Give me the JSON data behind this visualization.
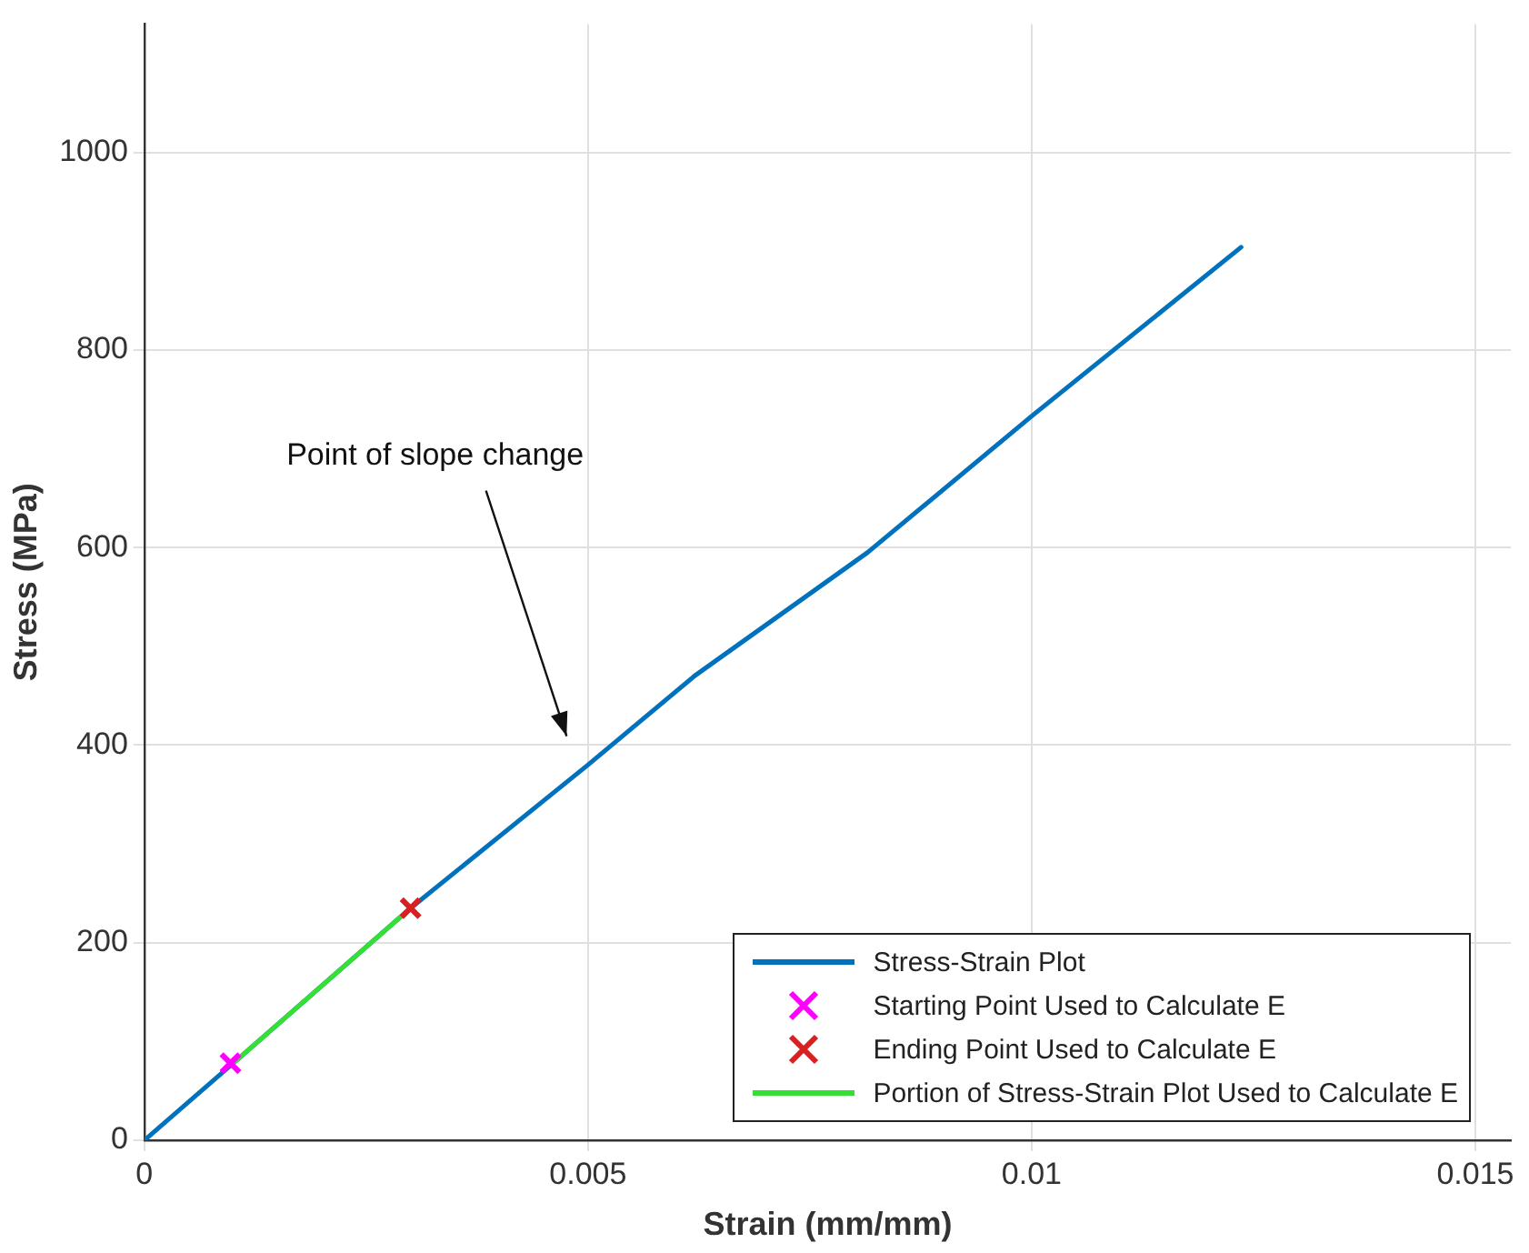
{
  "chart_data": {
    "type": "line",
    "xlabel": "Strain (mm/mm)",
    "ylabel": "Stress (MPa)",
    "xlim": [
      0,
      0.0154
    ],
    "xticks": [
      0,
      0.005,
      0.01,
      0.015
    ],
    "ylim": [
      0,
      1130
    ],
    "yticks": [
      0,
      200,
      400,
      600,
      800,
      1000
    ],
    "grid": true,
    "legend": "bottom right",
    "line_style": "solid",
    "series": [
      {
        "name": "Stress-Strain Plot",
        "color": "#0072bd",
        "x": [
          0,
          0.001,
          0.003,
          0.005,
          0.0062,
          0.00815,
          0.01,
          0.01236
        ],
        "values": [
          0,
          78,
          235,
          380,
          470,
          595,
          733,
          904
        ],
        "marker": "none"
      },
      {
        "name": "Starting Point Used to Calculate E",
        "type": "scatter",
        "color": "#ff00ff",
        "x": [
          0.00097
        ],
        "values": [
          78
        ],
        "marker": "cross"
      },
      {
        "name": "Ending Point Used to Calculate E",
        "type": "scatter",
        "color": "#d92020",
        "x": [
          0.003
        ],
        "values": [
          235
        ],
        "marker": "cross"
      },
      {
        "name": "Portion of Stress-Strain Plot Used to Calculate E",
        "color": "#33e033",
        "x": [
          0.001,
          0.003
        ],
        "values": [
          78,
          235
        ],
        "marker": "none"
      }
    ],
    "annotations": [
      "Point of slope change"
    ]
  }
}
